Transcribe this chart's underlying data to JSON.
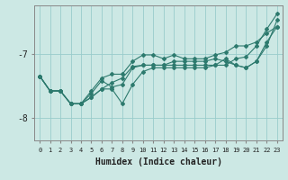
{
  "xlabel": "Humidex (Indice chaleur)",
  "background_color": "#cce8e4",
  "grid_color": "#99cccc",
  "line_color": "#2d7a6e",
  "x_values": [
    0,
    1,
    2,
    3,
    4,
    5,
    6,
    7,
    8,
    9,
    10,
    11,
    12,
    13,
    14,
    15,
    16,
    17,
    18,
    19,
    20,
    21,
    22,
    23
  ],
  "lines": [
    [
      -7.35,
      -7.58,
      -7.58,
      -7.78,
      -7.78,
      -7.68,
      -7.55,
      -7.45,
      -7.38,
      -7.2,
      -7.18,
      -7.18,
      -7.18,
      -7.18,
      -7.18,
      -7.18,
      -7.18,
      -7.18,
      -7.18,
      -7.08,
      -7.05,
      -6.88,
      -6.62,
      -6.38
    ],
    [
      -7.35,
      -7.58,
      -7.58,
      -7.78,
      -7.78,
      -7.68,
      -7.55,
      -7.55,
      -7.78,
      -7.48,
      -7.28,
      -7.22,
      -7.22,
      -7.22,
      -7.22,
      -7.22,
      -7.22,
      -7.18,
      -7.08,
      -7.18,
      -7.22,
      -7.12,
      -6.82,
      -6.58
    ],
    [
      -7.35,
      -7.58,
      -7.58,
      -7.78,
      -7.78,
      -7.62,
      -7.42,
      -7.52,
      -7.48,
      -7.22,
      -7.18,
      -7.18,
      -7.18,
      -7.12,
      -7.12,
      -7.12,
      -7.12,
      -7.08,
      -7.12,
      -7.18,
      -7.22,
      -7.12,
      -6.88,
      -6.48
    ],
    [
      -7.35,
      -7.58,
      -7.58,
      -7.78,
      -7.78,
      -7.58,
      -7.38,
      -7.32,
      -7.32,
      -7.12,
      -7.02,
      -7.02,
      -7.08,
      -7.02,
      -7.08,
      -7.08,
      -7.08,
      -7.02,
      -6.98,
      -6.88,
      -6.88,
      -6.82,
      -6.68,
      -6.58
    ]
  ],
  "ylim": [
    -8.35,
    -6.25
  ],
  "yticks": [
    -8,
    -7
  ],
  "xlim": [
    -0.5,
    23.5
  ],
  "xticks": [
    0,
    1,
    2,
    3,
    4,
    5,
    6,
    7,
    8,
    9,
    10,
    11,
    12,
    13,
    14,
    15,
    16,
    17,
    18,
    19,
    20,
    21,
    22,
    23
  ],
  "xlabel_fontsize": 7,
  "ytick_fontsize": 7,
  "xtick_fontsize": 5
}
